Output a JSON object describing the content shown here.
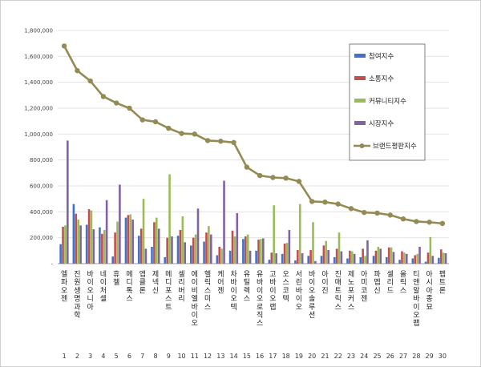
{
  "chart_data": {
    "type": "bar",
    "title": "",
    "xlabel": "",
    "ylabel": "",
    "ylim": [
      0,
      1800000
    ],
    "yticks": [
      "-",
      "200,000",
      "400,000",
      "600,000",
      "800,000",
      "1,000,000",
      "1,200,000",
      "1,400,000",
      "1,600,000",
      "1,800,000"
    ],
    "grid": true,
    "legend_position": "right",
    "ranks": [
      "1",
      "2",
      "3",
      "4",
      "5",
      "6",
      "7",
      "8",
      "9",
      "10",
      "11",
      "12",
      "13",
      "14",
      "15",
      "16",
      "17",
      "18",
      "19",
      "20",
      "21",
      "22",
      "23",
      "24",
      "25",
      "26",
      "27",
      "28",
      "29",
      "30"
    ],
    "categories": [
      "엘파오젠",
      "진원생명과학",
      "바이오니아",
      "네이처셀",
      "휴젤",
      "메디톡스",
      "앱클론",
      "제넥신",
      "메디포스트",
      "셀리버리",
      "에이비엘바이오",
      "헬릭스미스",
      "케어젠",
      "차바이오텍",
      "유틸렉스",
      "유바이오로직스",
      "고바이오랩",
      "오스코텍",
      "서린바이오",
      "바이오솔루션",
      "아이진",
      "진매트릭스",
      "제노포커스",
      "아미코젠",
      "파멥신",
      "셀리드",
      "올릭스",
      "티앤알바이오팹",
      "아시아종묘",
      "펩트론"
    ],
    "series": [
      {
        "name": "참여지수",
        "type": "bar",
        "color": "#4472c4",
        "values": [
          150000,
          460000,
          300000,
          280000,
          55000,
          355000,
          215000,
          130000,
          50000,
          215000,
          140000,
          170000,
          65000,
          100000,
          190000,
          100000,
          30000,
          75000,
          25000,
          60000,
          60000,
          50000,
          40000,
          50000,
          60000,
          50000,
          30000,
          40000,
          15000,
          45000
        ]
      },
      {
        "name": "소통지수",
        "type": "bar",
        "color": "#c0504d",
        "values": [
          285000,
          385000,
          420000,
          230000,
          240000,
          375000,
          270000,
          320000,
          200000,
          260000,
          200000,
          240000,
          130000,
          255000,
          210000,
          185000,
          85000,
          155000,
          105000,
          105000,
          140000,
          115000,
          100000,
          115000,
          100000,
          125000,
          95000,
          65000,
          85000,
          110000
        ]
      },
      {
        "name": "커뮤니티지수",
        "type": "bar",
        "color": "#9bbb59",
        "values": [
          295000,
          340000,
          410000,
          260000,
          325000,
          380000,
          500000,
          355000,
          690000,
          365000,
          225000,
          290000,
          115000,
          210000,
          225000,
          190000,
          450000,
          160000,
          460000,
          320000,
          175000,
          240000,
          95000,
          60000,
          130000,
          125000,
          85000,
          75000,
          205000,
          85000
        ]
      },
      {
        "name": "시장지수",
        "type": "bar",
        "color": "#8064a2",
        "values": [
          950000,
          295000,
          265000,
          490000,
          610000,
          340000,
          115000,
          270000,
          210000,
          165000,
          425000,
          225000,
          640000,
          390000,
          100000,
          195000,
          80000,
          260000,
          80000,
          20000,
          105000,
          95000,
          75000,
          180000,
          115000,
          90000,
          75000,
          130000,
          60000,
          80000
        ]
      },
      {
        "name": "브랜드평판지수",
        "type": "line",
        "color": "#948a54",
        "values": [
          1680000,
          1490000,
          1410000,
          1290000,
          1240000,
          1200000,
          1110000,
          1095000,
          1045000,
          1005000,
          1000000,
          950000,
          945000,
          935000,
          745000,
          680000,
          665000,
          660000,
          635000,
          480000,
          475000,
          460000,
          425000,
          395000,
          390000,
          375000,
          345000,
          325000,
          320000,
          310000
        ]
      }
    ]
  }
}
